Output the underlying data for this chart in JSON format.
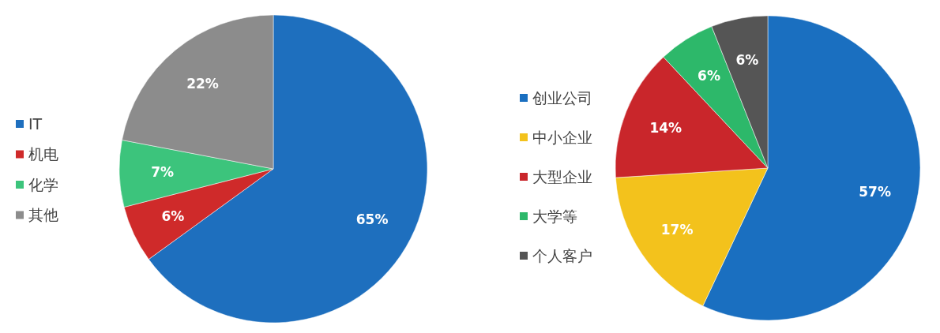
{
  "chart_data": [
    {
      "type": "pie",
      "categories": [
        "IT",
        "机电",
        "化学",
        "其他"
      ],
      "values": [
        65,
        6,
        7,
        22
      ],
      "colors": [
        "#1e6fbe",
        "#cf2a2a",
        "#3cc47c",
        "#8c8c8c"
      ],
      "value_labels": [
        "65%",
        "6%",
        "7%",
        "22%"
      ],
      "legend": "left"
    },
    {
      "type": "pie",
      "categories": [
        "创业公司",
        "中小企业",
        "大型企业",
        "大学等",
        "个人客户"
      ],
      "values": [
        57,
        17,
        14,
        6,
        6
      ],
      "colors": [
        "#1a6fc0",
        "#f3c21c",
        "#c9262b",
        "#2db86a",
        "#555555"
      ],
      "value_labels": [
        "57%",
        "17%",
        "14%",
        "6%",
        "6%"
      ],
      "legend": "left"
    }
  ]
}
